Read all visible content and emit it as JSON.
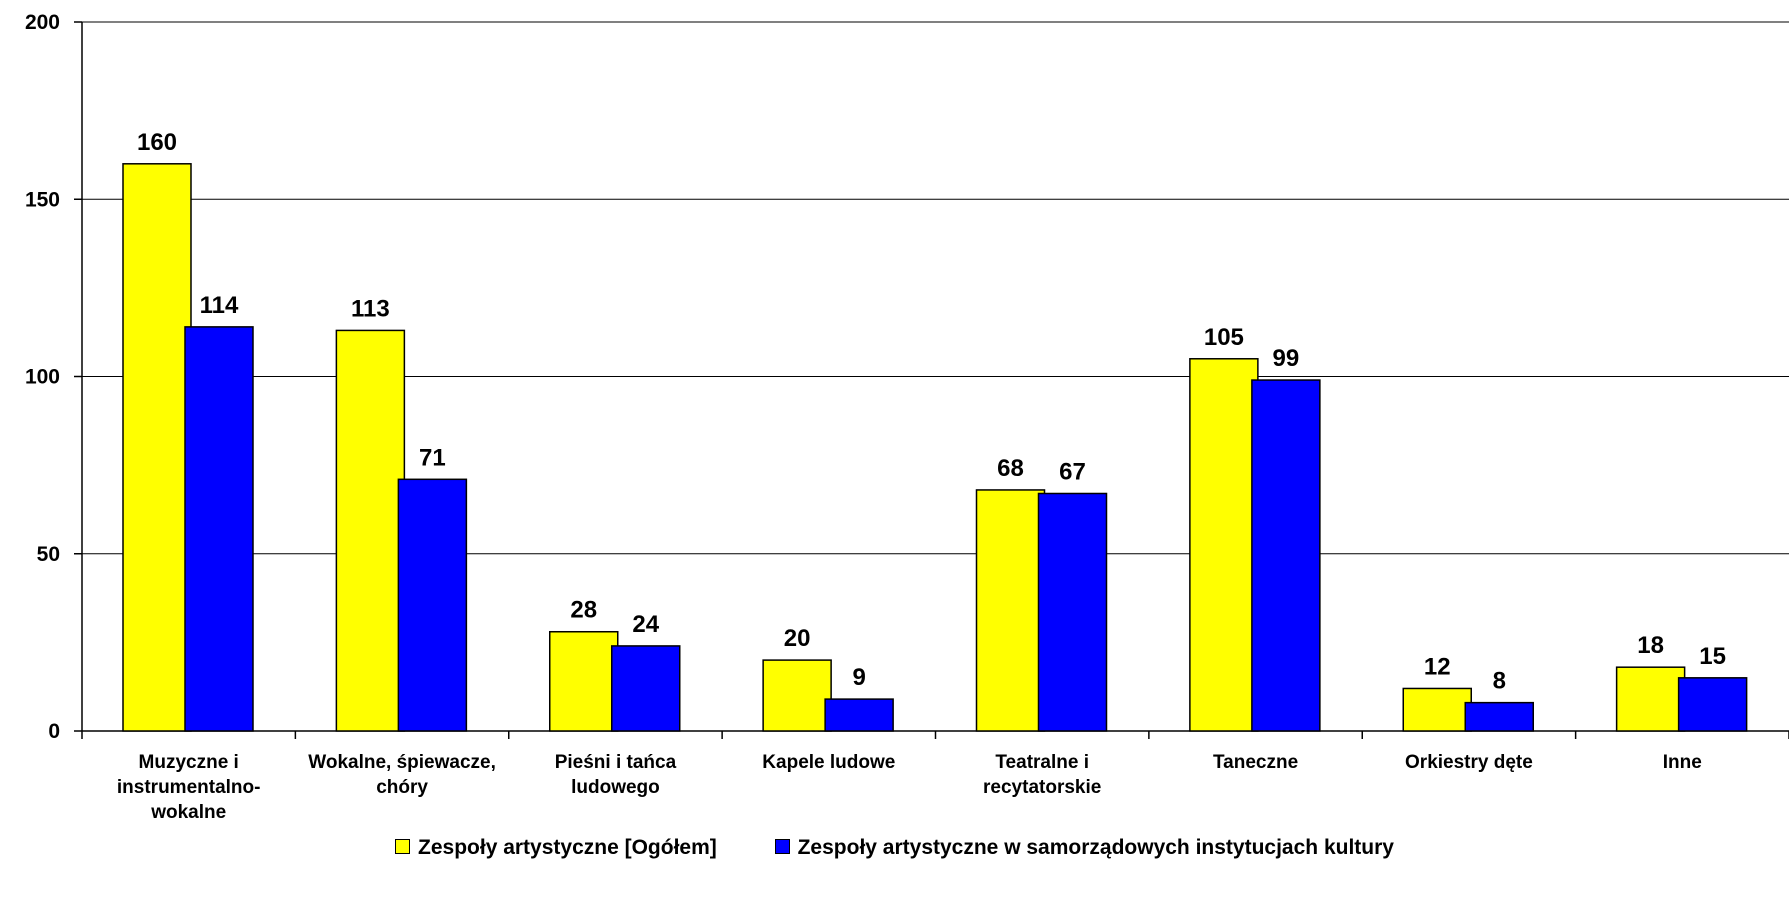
{
  "chart_data": {
    "type": "bar",
    "title": "",
    "xlabel": "",
    "ylabel": "",
    "ylim": [
      0,
      200
    ],
    "yticks": [
      0,
      50,
      100,
      150,
      200
    ],
    "grid": true,
    "legend_position": "bottom",
    "categories": [
      [
        "Muzyczne i",
        "instrumentalno-",
        "wokalne"
      ],
      [
        "Wokalne, śpiewacze,",
        "chóry"
      ],
      [
        "Pieśni i tańca",
        "ludowego"
      ],
      [
        "Kapele ludowe"
      ],
      [
        "Teatralne i",
        "recytatorskie"
      ],
      [
        "Taneczne"
      ],
      [
        "Orkiestry dęte"
      ],
      [
        "Inne"
      ]
    ],
    "series": [
      {
        "name": "Zespoły artystyczne [Ogółem]",
        "color": "#FFFF00",
        "values": [
          160,
          113,
          28,
          20,
          68,
          105,
          12,
          18
        ]
      },
      {
        "name": "Zespoły artystyczne w samorządowych instytucjach kultury",
        "color": "#0000FF",
        "values": [
          114,
          71,
          24,
          9,
          67,
          99,
          8,
          15
        ]
      }
    ]
  }
}
